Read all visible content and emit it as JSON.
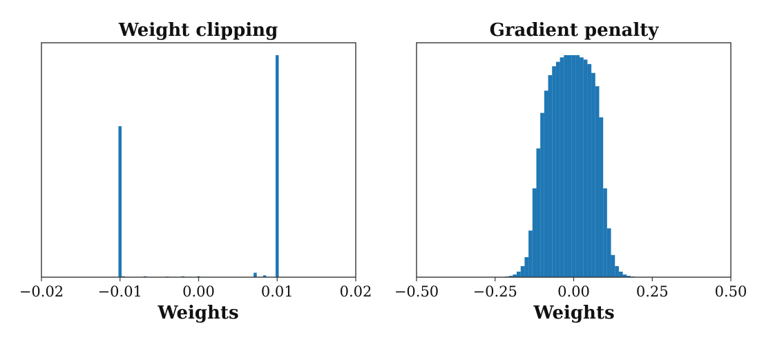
{
  "chart_data": [
    {
      "type": "bar",
      "title": "Weight clipping",
      "xlabel": "Weights",
      "ylabel": "",
      "xlim": [
        -0.02,
        0.02
      ],
      "xticks": [
        -0.02,
        -0.01,
        0.0,
        0.01,
        0.02
      ],
      "xtick_labels": [
        "−0.02",
        "−0.01",
        "0.00",
        "0.01",
        "0.02"
      ],
      "y_ticks_shown": false,
      "bin_width": 0.0004,
      "ylim": [
        0,
        1.0
      ],
      "bins": [
        {
          "x": -0.01,
          "value": 0.68
        },
        {
          "x": -0.0096,
          "value": 0.004
        },
        {
          "x": -0.0068,
          "value": 0.004
        },
        {
          "x": -0.004,
          "value": 0.003
        },
        {
          "x": -0.002,
          "value": 0.004
        },
        {
          "x": 0.0,
          "value": 0.004
        },
        {
          "x": 0.0072,
          "value": 0.02
        },
        {
          "x": 0.0084,
          "value": 0.008
        },
        {
          "x": 0.01,
          "value": 1.0
        }
      ]
    },
    {
      "type": "bar",
      "title": "Gradient penalty",
      "xlabel": "Weights",
      "ylabel": "",
      "xlim": [
        -0.5,
        0.5
      ],
      "xticks": [
        -0.5,
        -0.25,
        0.0,
        0.25,
        0.5
      ],
      "xtick_labels": [
        "−0.50",
        "−0.25",
        "0.00",
        "0.25",
        "0.50"
      ],
      "y_ticks_shown": false,
      "bin_width": 0.0125,
      "ylim": [
        0,
        1.0
      ],
      "bins": [
        {
          "x": -0.2125,
          "value": 0.003
        },
        {
          "x": -0.2,
          "value": 0.006
        },
        {
          "x": -0.1875,
          "value": 0.012
        },
        {
          "x": -0.175,
          "value": 0.025
        },
        {
          "x": -0.1625,
          "value": 0.05
        },
        {
          "x": -0.15,
          "value": 0.09
        },
        {
          "x": -0.1375,
          "value": 0.21
        },
        {
          "x": -0.125,
          "value": 0.4
        },
        {
          "x": -0.1125,
          "value": 0.58
        },
        {
          "x": -0.1,
          "value": 0.74
        },
        {
          "x": -0.0875,
          "value": 0.84
        },
        {
          "x": -0.075,
          "value": 0.91
        },
        {
          "x": -0.0625,
          "value": 0.95
        },
        {
          "x": -0.05,
          "value": 0.97
        },
        {
          "x": -0.0375,
          "value": 0.99
        },
        {
          "x": -0.025,
          "value": 1.0
        },
        {
          "x": -0.0125,
          "value": 1.0
        },
        {
          "x": 0.0,
          "value": 1.0
        },
        {
          "x": 0.0125,
          "value": 1.0
        },
        {
          "x": 0.025,
          "value": 0.99
        },
        {
          "x": 0.0375,
          "value": 0.98
        },
        {
          "x": 0.05,
          "value": 0.96
        },
        {
          "x": 0.0625,
          "value": 0.92
        },
        {
          "x": 0.075,
          "value": 0.86
        },
        {
          "x": 0.0875,
          "value": 0.72
        },
        {
          "x": 0.1,
          "value": 0.4
        },
        {
          "x": 0.1125,
          "value": 0.22
        },
        {
          "x": 0.125,
          "value": 0.1
        },
        {
          "x": 0.1375,
          "value": 0.05
        },
        {
          "x": 0.15,
          "value": 0.025
        },
        {
          "x": 0.1625,
          "value": 0.012
        },
        {
          "x": 0.175,
          "value": 0.006
        },
        {
          "x": 0.1875,
          "value": 0.003
        }
      ]
    }
  ],
  "colors": {
    "bar": "#1f77b4",
    "frame": "#333333",
    "background": "#ffffff"
  }
}
